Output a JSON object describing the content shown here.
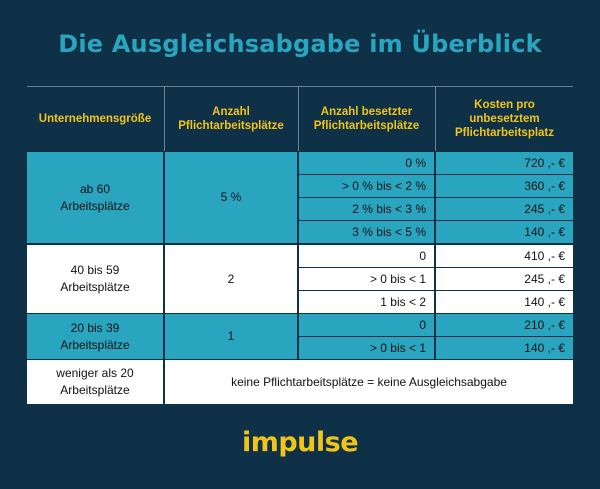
{
  "title": "Die Ausgleichsabgabe im Überblick",
  "columns": [
    "Unternehmensgröße",
    "Anzahl\nPflichtarbeitsplätze",
    "Anzahl besetzter\nPflichtarbeitsplätze",
    "Kosten pro\nunbesetztem\nPflichtarbeitsplatz"
  ],
  "groups": [
    {
      "size": "ab 60\nArbeitsplätze",
      "count": "5 %",
      "rows": [
        {
          "occupied": "0 %",
          "cost": "720 ,- €"
        },
        {
          "occupied": "> 0 % bis < 2 %",
          "cost": "360 ,- €"
        },
        {
          "occupied": "2 % bis < 3 %",
          "cost": "245 ,- €"
        },
        {
          "occupied": "3 % bis < 5 %",
          "cost": "140 ,- €"
        }
      ]
    },
    {
      "size": "40 bis 59\nArbeitsplätze",
      "count": "2",
      "rows": [
        {
          "occupied": "0",
          "cost": "410 ,- €"
        },
        {
          "occupied": "> 0 bis < 1",
          "cost": "245 ,- €"
        },
        {
          "occupied": "1 bis < 2",
          "cost": "140 ,- €"
        }
      ]
    },
    {
      "size": "20 bis 39\nArbeitsplätze",
      "count": "1",
      "rows": [
        {
          "occupied": "0",
          "cost": "210 ,- €"
        },
        {
          "occupied": "> 0 bis < 1",
          "cost": "140 ,- €"
        }
      ]
    }
  ],
  "last_row": {
    "size": "weniger als 20\nArbeitsplätze",
    "note": "keine Pflichtarbeitsplätze = keine Ausgleichsabgabe"
  },
  "logo": "impulse",
  "colors": {
    "background": "#0f3148",
    "teal": "#2aa5c0",
    "header_text": "#f0c419",
    "logo": "#f0c419"
  }
}
